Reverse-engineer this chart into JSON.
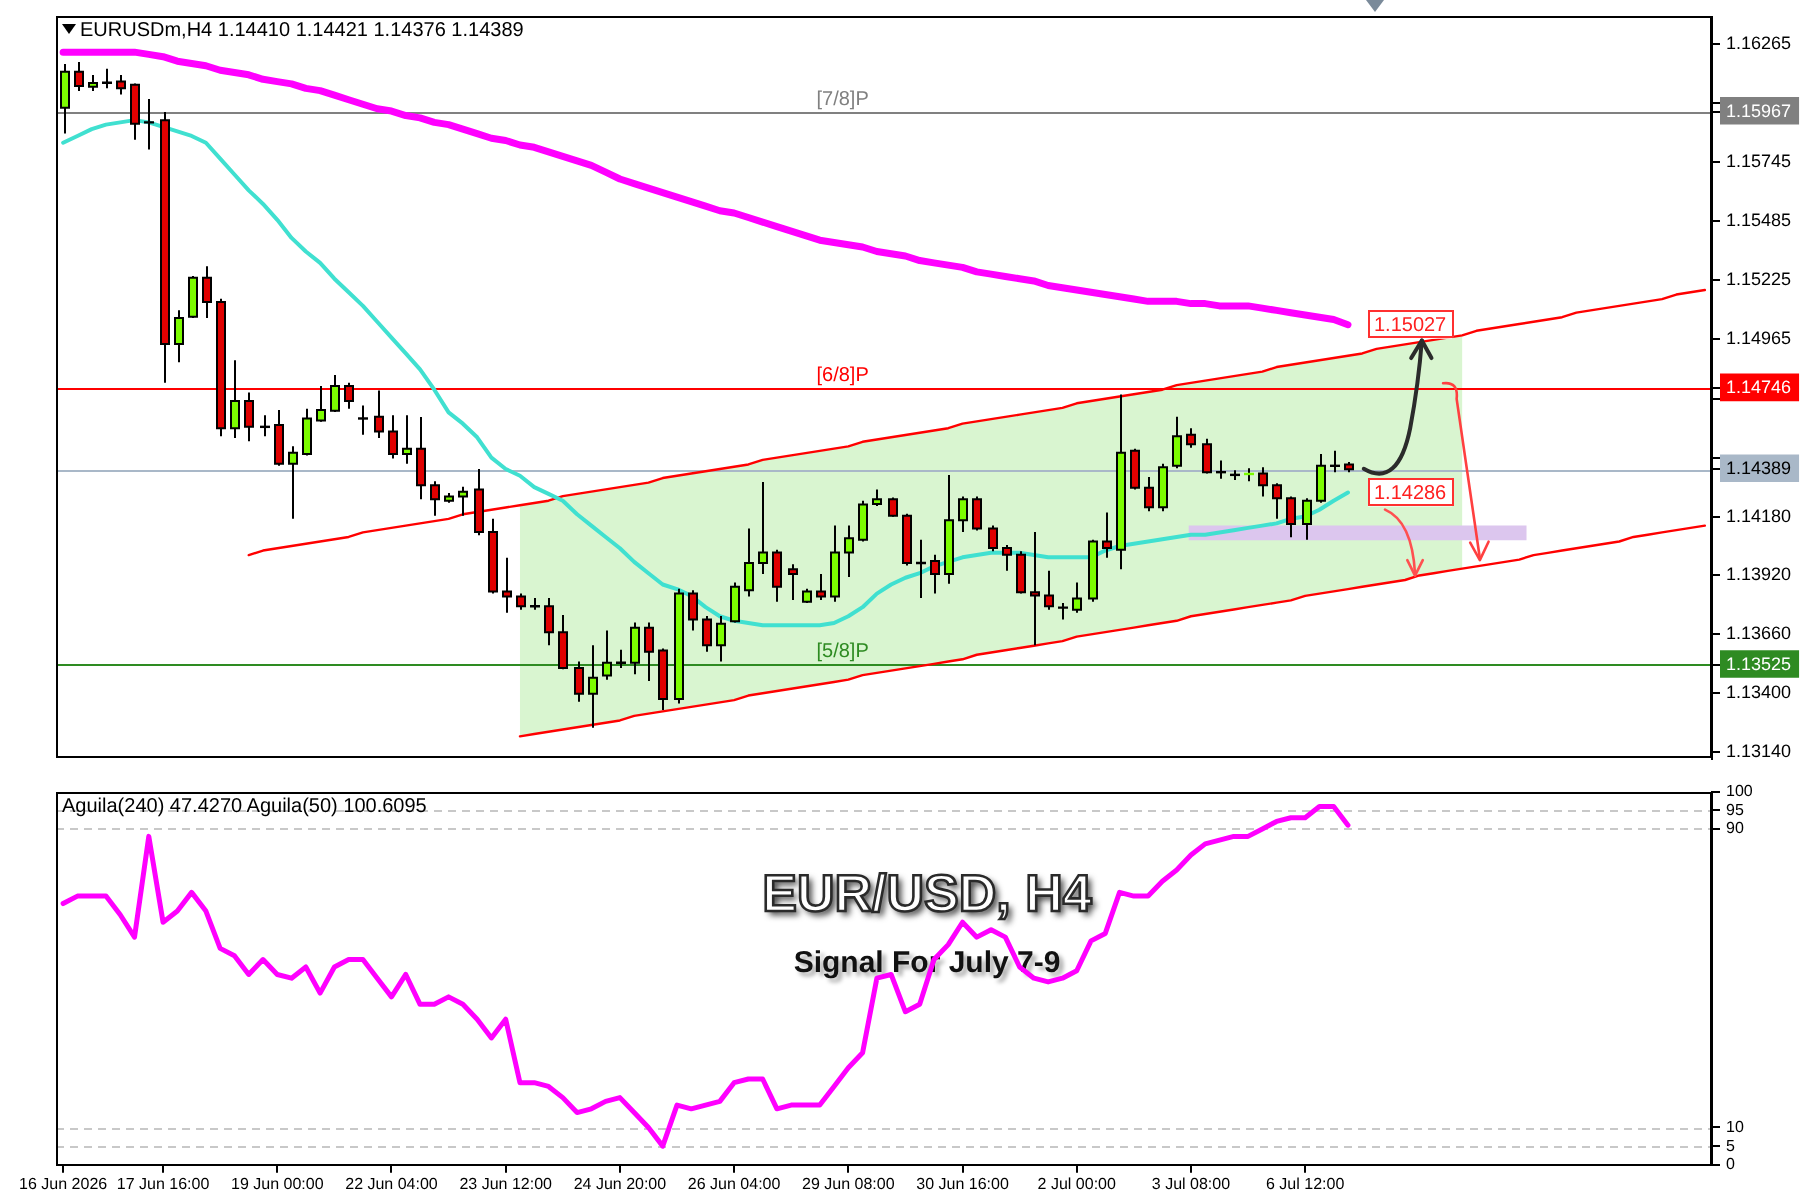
{
  "chart_data": [
    {
      "type": "candlestick",
      "title": "EURUSDm,H4 1.14410 1.14421 1.14376 1.14389",
      "categories": [
        null,
        null,
        null,
        null,
        null,
        null,
        null,
        null,
        null,
        null,
        null,
        null,
        null,
        null,
        null,
        null,
        null,
        null,
        null,
        null,
        null,
        null,
        null,
        null,
        null,
        null,
        null,
        null,
        null,
        null,
        null,
        null,
        null,
        null,
        null,
        null,
        null,
        null,
        null,
        null,
        null,
        null,
        null,
        null,
        null,
        null,
        null,
        null,
        null,
        null,
        null,
        null,
        null,
        null,
        null,
        null,
        null,
        null,
        null,
        null,
        null,
        null,
        null,
        null,
        null,
        null,
        null,
        null,
        null,
        null,
        null,
        null,
        null,
        null,
        null,
        null,
        null,
        null,
        null,
        null,
        null,
        null,
        null,
        null,
        null,
        null,
        null,
        null,
        null,
        null,
        null,
        null,
        null,
        null,
        null,
        null,
        null,
        null,
        null,
        null,
        null,
        null,
        null,
        null,
        null,
        null,
        null,
        null,
        null,
        null,
        null,
        null,
        null,
        null,
        null,
        null
      ],
      "ohlc": [
        [
          1.15985,
          1.16178,
          1.15871,
          1.16143
        ],
        [
          1.16143,
          1.16186,
          1.16058,
          1.1608
        ],
        [
          1.16077,
          1.16129,
          1.16058,
          1.16094
        ],
        [
          1.16095,
          1.16157,
          1.16071,
          1.16095
        ],
        [
          1.161,
          1.16129,
          1.16043,
          1.16071
        ],
        [
          1.16086,
          1.16092,
          1.15843,
          1.15914
        ],
        [
          1.1592,
          1.16023,
          1.158,
          1.1592
        ],
        [
          1.15929,
          1.15966,
          1.14771,
          1.14942
        ],
        [
          1.14942,
          1.15091,
          1.14861,
          1.15056
        ],
        [
          1.15062,
          1.15242,
          1.15056,
          1.15234
        ],
        [
          1.15234,
          1.15285,
          1.15056,
          1.15127
        ],
        [
          1.15127,
          1.15142,
          1.14535,
          1.1457
        ],
        [
          1.1457,
          1.1487,
          1.14527,
          1.1469
        ],
        [
          1.1469,
          1.14728,
          1.14513,
          1.14576
        ],
        [
          1.14576,
          1.14627,
          1.14535,
          1.14576
        ],
        [
          1.14584,
          1.1465,
          1.14404,
          1.14413
        ],
        [
          1.14413,
          1.1449,
          1.1417,
          1.14462
        ],
        [
          1.14456,
          1.14656,
          1.1445,
          1.14613
        ],
        [
          1.14604,
          1.14756,
          1.14599,
          1.1465
        ],
        [
          1.14647,
          1.14805,
          1.14642,
          1.14756
        ],
        [
          1.14756,
          1.14771,
          1.14656,
          1.1469
        ],
        [
          1.14613,
          1.1467,
          1.14541,
          1.14613
        ],
        [
          1.14621,
          1.14736,
          1.14527,
          1.14556
        ],
        [
          1.14556,
          1.14627,
          1.14436,
          1.14456
        ],
        [
          1.14456,
          1.14627,
          1.14413,
          1.14479
        ],
        [
          1.14479,
          1.14619,
          1.14256,
          1.14318
        ],
        [
          1.14318,
          1.14336,
          1.14184,
          1.14256
        ],
        [
          1.1425,
          1.14284,
          1.14241,
          1.14269
        ],
        [
          1.14269,
          1.14312,
          1.14184,
          1.1429
        ],
        [
          1.14299,
          1.1439,
          1.14098,
          1.14112
        ],
        [
          1.14112,
          1.1417,
          1.1384,
          1.13849
        ],
        [
          1.13849,
          1.13998,
          1.13755,
          1.13827
        ],
        [
          1.13827,
          1.1384,
          1.13769,
          1.13784
        ],
        [
          1.13784,
          1.13821,
          1.13769,
          1.13784
        ],
        [
          1.13784,
          1.13821,
          1.13612,
          1.13669
        ],
        [
          1.13669,
          1.13746,
          1.13506,
          1.13512
        ],
        [
          1.13512,
          1.1354,
          1.13363,
          1.13398
        ],
        [
          1.13398,
          1.13612,
          1.13248,
          1.13469
        ],
        [
          1.13478,
          1.13677,
          1.1346,
          1.13535
        ],
        [
          1.13535,
          1.13592,
          1.13512,
          1.13535
        ],
        [
          1.13535,
          1.13712,
          1.13484,
          1.13689
        ],
        [
          1.13689,
          1.13712,
          1.13454,
          1.13583
        ],
        [
          1.13589,
          1.13598,
          1.13326,
          1.13375
        ],
        [
          1.13375,
          1.13861,
          1.13355,
          1.1384
        ],
        [
          1.1384,
          1.13855,
          1.13677,
          1.13726
        ],
        [
          1.13726,
          1.13741,
          1.13583,
          1.13612
        ],
        [
          1.13612,
          1.13741,
          1.1354,
          1.13707
        ],
        [
          1.13718,
          1.13889,
          1.13712,
          1.1387
        ],
        [
          1.13855,
          1.14127,
          1.13827,
          1.13975
        ],
        [
          1.13975,
          1.14333,
          1.13926,
          1.14021
        ],
        [
          1.14021,
          1.14033,
          1.13804,
          1.1387
        ],
        [
          1.13947,
          1.13969,
          1.13812,
          1.13926
        ],
        [
          1.13804,
          1.13861,
          1.13798,
          1.13849
        ],
        [
          1.13849,
          1.13926,
          1.13812,
          1.13827
        ],
        [
          1.13827,
          1.14141,
          1.13804,
          1.14021
        ],
        [
          1.14021,
          1.14141,
          1.13913,
          1.14084
        ],
        [
          1.14078,
          1.1425,
          1.1407,
          1.14233
        ],
        [
          1.14235,
          1.14299,
          1.14227,
          1.14256
        ],
        [
          1.14256,
          1.14264,
          1.14179,
          1.14184
        ],
        [
          1.14184,
          1.14192,
          1.13964,
          1.13975
        ],
        [
          1.13975,
          1.14078,
          1.13821,
          1.13975
        ],
        [
          1.13984,
          1.14012,
          1.1384,
          1.13926
        ],
        [
          1.13926,
          1.14364,
          1.13883,
          1.14164
        ],
        [
          1.14164,
          1.14269,
          1.14112,
          1.14256
        ],
        [
          1.14256,
          1.14269,
          1.14118,
          1.14127
        ],
        [
          1.14127,
          1.14141,
          1.14027,
          1.14041
        ],
        [
          1.14041,
          1.14055,
          1.13941,
          1.14012
        ],
        [
          1.14012,
          1.14027,
          1.1384,
          1.13846
        ],
        [
          1.13846,
          1.14112,
          1.13612,
          1.13832
        ],
        [
          1.13832,
          1.13941,
          1.13769,
          1.13784
        ],
        [
          1.13778,
          1.13798,
          1.13726,
          1.13778
        ],
        [
          1.13769,
          1.13889,
          1.13755,
          1.13818
        ],
        [
          1.13818,
          1.14078,
          1.13804,
          1.1407
        ],
        [
          1.1407,
          1.14198,
          1.13998,
          1.14041
        ],
        [
          1.14033,
          1.14719,
          1.13947,
          1.14462
        ],
        [
          1.1447,
          1.14479,
          1.14299,
          1.14307
        ],
        [
          1.14307,
          1.14355,
          1.14204,
          1.14221
        ],
        [
          1.14221,
          1.14413,
          1.14204,
          1.14398
        ],
        [
          1.14404,
          1.14621,
          1.14393,
          1.14535
        ],
        [
          1.14541,
          1.1457,
          1.14484,
          1.14499
        ],
        [
          1.14499,
          1.14524,
          1.1437,
          1.14376
        ],
        [
          1.14376,
          1.14427,
          1.14347,
          1.14376
        ],
        [
          1.14364,
          1.14384,
          1.14341,
          1.14364
        ],
        [
          1.14364,
          1.14393,
          1.14336,
          1.14372
        ],
        [
          1.1437,
          1.14398,
          1.14269,
          1.14318
        ],
        [
          1.14318,
          1.14327,
          1.1417,
          1.14261
        ],
        [
          1.14261,
          1.14269,
          1.14089,
          1.14147
        ],
        [
          1.14147,
          1.14261,
          1.14078,
          1.1425
        ],
        [
          1.1425,
          1.14456,
          1.14241,
          1.14404
        ],
        [
          1.14404,
          1.1447,
          1.14376,
          1.14404
        ],
        [
          1.1441,
          1.14421,
          1.14376,
          1.14389
        ],
        null,
        null,
        null,
        null,
        null,
        null,
        null,
        null,
        null,
        null,
        null,
        null,
        null,
        null,
        null,
        null,
        null,
        null,
        null,
        null,
        null,
        null,
        null,
        null,
        null
      ],
      "colors": [
        "#7cfc00",
        "#e00000",
        "#7cfc00",
        "#000000",
        "#e00000",
        "#e00000",
        "#000000",
        "#e00000",
        "#7cfc00",
        "#7cfc00",
        "#e00000",
        "#e00000",
        "#7cfc00",
        "#e00000",
        "#000000",
        "#e00000",
        "#7cfc00",
        "#7cfc00",
        "#7cfc00",
        "#7cfc00",
        "#e00000",
        "#000000",
        "#e00000",
        "#e00000",
        "#7cfc00",
        "#e00000",
        "#e00000",
        "#7cfc00",
        "#7cfc00",
        "#e00000",
        "#e00000",
        "#e00000",
        "#e00000",
        "#000000",
        "#e00000",
        "#e00000",
        "#e00000",
        "#7cfc00",
        "#7cfc00",
        "#000000",
        "#7cfc00",
        "#e00000",
        "#e00000",
        "#7cfc00",
        "#e00000",
        "#e00000",
        "#7cfc00",
        "#7cfc00",
        "#7cfc00",
        "#7cfc00",
        "#e00000",
        "#e00000",
        "#7cfc00",
        "#e00000",
        "#7cfc00",
        "#7cfc00",
        "#7cfc00",
        "#7cfc00",
        "#e00000",
        "#e00000",
        "#000000",
        "#e00000",
        "#7cfc00",
        "#7cfc00",
        "#e00000",
        "#e00000",
        "#e00000",
        "#e00000",
        "#e00000",
        "#e00000",
        "#000000",
        "#7cfc00",
        "#7cfc00",
        "#e00000",
        "#7cfc00",
        "#e00000",
        "#e00000",
        "#7cfc00",
        "#7cfc00",
        "#e00000",
        "#e00000",
        "#000000",
        "#000000",
        "#7cfc00",
        "#e00000",
        "#e00000",
        "#e00000",
        "#7cfc00",
        "#7cfc00",
        "#000000",
        "#e00000",
        null,
        null,
        null,
        null,
        null,
        null,
        null,
        null,
        null,
        null,
        null,
        null,
        null,
        null,
        null,
        null,
        null,
        null,
        null,
        null,
        null,
        null,
        null,
        null,
        null
      ],
      "series": [
        {
          "type": "line",
          "color": "#40e0d0",
          "values": [
            1.1583,
            1.1586,
            1.1589,
            1.1591,
            1.1592,
            1.1593,
            1.1592,
            1.159,
            1.1588,
            1.1586,
            1.1583,
            1.1576,
            1.1569,
            1.1562,
            1.1556,
            1.1549,
            1.1541,
            1.1535,
            1.153,
            1.1523,
            1.1517,
            1.1511,
            1.1504,
            1.1497,
            1.149,
            1.1483,
            1.1474,
            1.1464,
            1.1459,
            1.1453,
            1.1444,
            1.1439,
            1.1436,
            1.1431,
            1.1428,
            1.1425,
            1.1419,
            1.1414,
            1.1409,
            1.1404,
            1.1398,
            1.1393,
            1.1388,
            1.1386,
            1.1383,
            1.1378,
            1.1374,
            1.1372,
            1.1371,
            1.137,
            1.137,
            1.137,
            1.137,
            1.137,
            1.1371,
            1.1374,
            1.1378,
            1.1384,
            1.1388,
            1.1391,
            1.1393,
            1.1396,
            1.1398,
            1.14,
            1.1401,
            1.1402,
            1.1402,
            1.1402,
            1.1401,
            1.14,
            1.14,
            1.14,
            1.14,
            1.1403,
            1.1405,
            1.1406,
            1.1407,
            1.1408,
            1.1409,
            1.141,
            1.141,
            1.1411,
            1.1412,
            1.1413,
            1.1414,
            1.1415,
            1.1417,
            1.1418,
            1.1421,
            1.1425,
            1.14286,
            null,
            null,
            null,
            null,
            null,
            null,
            null,
            null,
            null,
            null,
            null,
            null,
            null,
            null,
            null,
            null,
            null,
            null,
            null,
            null,
            null,
            null,
            null,
            null,
            null
          ]
        },
        {
          "type": "line",
          "color": "#ff00ff",
          "values": [
            1.1623,
            1.1623,
            1.1623,
            1.1623,
            1.1623,
            1.1623,
            1.1622,
            1.1621,
            1.1619,
            1.1618,
            1.1617,
            1.1615,
            1.1614,
            1.1613,
            1.1611,
            1.161,
            1.1609,
            1.1607,
            1.1606,
            1.1604,
            1.1602,
            1.16,
            1.1598,
            1.1597,
            1.1595,
            1.1594,
            1.1592,
            1.1591,
            1.1589,
            1.1587,
            1.1585,
            1.1584,
            1.1582,
            1.1581,
            1.1579,
            1.1577,
            1.1575,
            1.1573,
            1.157,
            1.1567,
            1.1565,
            1.1563,
            1.1561,
            1.1559,
            1.1557,
            1.1555,
            1.1553,
            1.1552,
            1.155,
            1.1548,
            1.1546,
            1.1544,
            1.1542,
            1.154,
            1.1539,
            1.1538,
            1.1537,
            1.1535,
            1.1534,
            1.1533,
            1.1531,
            1.153,
            1.1529,
            1.1528,
            1.1526,
            1.1525,
            1.1524,
            1.1523,
            1.1522,
            1.152,
            1.1519,
            1.1518,
            1.1517,
            1.1516,
            1.1515,
            1.1514,
            1.1513,
            1.1513,
            1.1513,
            1.1512,
            1.1512,
            1.1511,
            1.1511,
            1.1511,
            1.151,
            1.1509,
            1.1508,
            1.1507,
            1.1506,
            1.1505,
            1.15027,
            null,
            null,
            null,
            null,
            null,
            null,
            null,
            null,
            null,
            null,
            null,
            null,
            null,
            null,
            null,
            null,
            null,
            null,
            null,
            null,
            null,
            null,
            null,
            null,
            null
          ]
        },
        {
          "type": "line",
          "color": "#ff0000",
          "values": [
            null,
            null,
            null,
            null,
            null,
            null,
            null,
            null,
            null,
            null,
            null,
            null,
            null,
            1.1401,
            1.1403,
            1.1404,
            1.1405,
            1.1406,
            1.1407,
            1.1408,
            1.1409,
            1.1411,
            1.1412,
            1.1413,
            1.1414,
            1.1415,
            1.1416,
            1.1417,
            1.1419,
            1.142,
            1.1421,
            1.1422,
            1.1423,
            1.1424,
            1.1425,
            1.1427,
            1.1428,
            1.1429,
            1.143,
            1.1431,
            1.1432,
            1.1433,
            1.1435,
            1.1436,
            1.1437,
            1.1438,
            1.1439,
            1.144,
            1.1441,
            1.1443,
            1.1444,
            1.1445,
            1.1446,
            1.1447,
            1.1448,
            1.1449,
            1.1451,
            1.1452,
            1.1453,
            1.1454,
            1.1455,
            1.1456,
            1.1457,
            1.1459,
            1.146,
            1.1461,
            1.1462,
            1.1463,
            1.1464,
            1.1465,
            1.1466,
            1.1468,
            1.1469,
            1.147,
            1.1471,
            1.1472,
            1.1473,
            1.1474,
            1.1476,
            1.1477,
            1.1478,
            1.1479,
            1.148,
            1.1481,
            1.1482,
            1.1484,
            1.1485,
            1.1486,
            1.1487,
            1.1488,
            1.1489,
            1.149,
            1.1492,
            1.1493,
            1.1494,
            1.1495,
            1.1496,
            1.1497,
            1.1498,
            1.15,
            1.1501,
            1.1502,
            1.1503,
            1.1504,
            1.1505,
            1.1506,
            1.1508,
            1.1509,
            1.151,
            1.1511,
            1.1512,
            1.1513,
            1.1514,
            1.1516,
            1.1517,
            1.1518
          ],
          "upper": [
            null,
            null,
            null,
            null,
            null,
            null,
            null,
            null,
            null,
            null,
            null,
            null,
            null,
            null,
            null,
            null,
            null,
            null,
            null,
            null,
            null,
            null,
            null,
            null,
            null,
            null,
            null,
            null,
            null,
            null,
            null,
            null,
            1.1423,
            1.1424,
            1.1425,
            1.1427,
            1.1428,
            1.1429,
            1.143,
            1.1431,
            1.1432,
            1.1433,
            1.1435,
            1.1436,
            1.1437,
            1.1438,
            1.1439,
            1.144,
            1.1441,
            1.1443,
            1.1444,
            1.1445,
            1.1446,
            1.1447,
            1.1448,
            1.1449,
            1.1451,
            1.1452,
            1.1453,
            1.1454,
            1.1455,
            1.1456,
            1.1457,
            1.1459,
            1.146,
            1.1461,
            1.1462,
            1.1463,
            1.1464,
            1.1465,
            1.1466,
            1.1468,
            1.1469,
            1.147,
            1.1471,
            1.1472,
            1.1473,
            1.1474,
            1.1476,
            1.1477,
            1.1478,
            1.1479,
            1.148,
            1.1481,
            1.1482,
            1.1484,
            1.1485,
            1.1486,
            1.1487,
            1.1488,
            1.1489,
            1.149,
            1.1492,
            1.1493,
            1.1494,
            1.1495,
            1.1496,
            1.1497,
            1.1498,
            null,
            null,
            null,
            null,
            null,
            null,
            null,
            null,
            null,
            null,
            null,
            null,
            null,
            null,
            null,
            null,
            null
          ],
          "lower": [
            null,
            null,
            null,
            null,
            null,
            null,
            null,
            null,
            null,
            null,
            null,
            null,
            null,
            null,
            null,
            null,
            null,
            null,
            null,
            null,
            null,
            null,
            null,
            null,
            null,
            null,
            null,
            null,
            null,
            null,
            null,
            null,
            1.1321,
            1.1322,
            1.1323,
            1.1324,
            1.1325,
            1.1326,
            1.1327,
            1.1328,
            1.133,
            1.1331,
            1.1332,
            1.1333,
            1.1334,
            1.1335,
            1.1336,
            1.1337,
            1.1339,
            1.134,
            1.1341,
            1.1342,
            1.1343,
            1.1344,
            1.1345,
            1.1346,
            1.1348,
            1.1349,
            1.135,
            1.1351,
            1.1352,
            1.1353,
            1.1354,
            1.1355,
            1.1357,
            1.1358,
            1.1359,
            1.136,
            1.1361,
            1.1362,
            1.1363,
            1.1365,
            1.1366,
            1.1367,
            1.1368,
            1.1369,
            1.137,
            1.1371,
            1.1372,
            1.1374,
            1.1375,
            1.1376,
            1.1377,
            1.1378,
            1.1379,
            1.138,
            1.1381,
            1.1383,
            1.1384,
            1.1385,
            1.1386,
            1.1387,
            1.1388,
            1.1389,
            1.139,
            1.1392,
            1.1393,
            1.1394,
            1.1395,
            null,
            null,
            null,
            null,
            null,
            null,
            null,
            null,
            null,
            null,
            null,
            null,
            null,
            null,
            null,
            null,
            null
          ]
        },
        {
          "type": "line",
          "color": "#ff0000",
          "values": [
            null,
            null,
            null,
            null,
            null,
            null,
            null,
            null,
            null,
            null,
            null,
            null,
            null,
            null,
            null,
            null,
            null,
            null,
            null,
            null,
            null,
            null,
            null,
            null,
            null,
            null,
            null,
            null,
            null,
            null,
            null,
            null,
            1.1321,
            1.1322,
            1.1323,
            1.1324,
            1.1325,
            1.1326,
            1.1327,
            1.1328,
            1.133,
            1.1331,
            1.1332,
            1.1333,
            1.1334,
            1.1335,
            1.1336,
            1.1337,
            1.1339,
            1.134,
            1.1341,
            1.1342,
            1.1343,
            1.1344,
            1.1345,
            1.1346,
            1.1348,
            1.1349,
            1.135,
            1.1351,
            1.1352,
            1.1353,
            1.1354,
            1.1355,
            1.1357,
            1.1358,
            1.1359,
            1.136,
            1.1361,
            1.1362,
            1.1363,
            1.1365,
            1.1366,
            1.1367,
            1.1368,
            1.1369,
            1.137,
            1.1371,
            1.1372,
            1.1374,
            1.1375,
            1.1376,
            1.1377,
            1.1378,
            1.1379,
            1.138,
            1.1381,
            1.1383,
            1.1384,
            1.1385,
            1.1386,
            1.1387,
            1.1388,
            1.1389,
            1.139,
            1.1392,
            1.1393,
            1.1394,
            1.1395,
            1.1396,
            1.1397,
            1.1398,
            1.1399,
            1.1401,
            1.1402,
            1.1403,
            1.1404,
            1.1405,
            1.1406,
            1.1407,
            1.1409,
            1.141,
            1.1411,
            1.1412,
            1.1413,
            1.1414
          ]
        }
      ],
      "ylim": [
        1.13109,
        1.16386
      ],
      "yticks": [
        {
          "value": 1.1314,
          "label": "1.13140"
        },
        {
          "value": 1.134,
          "label": "1.13400"
        },
        1.13525,
        {
          "value": 1.1366,
          "label": "1.13660"
        },
        {
          "value": 1.1392,
          "label": "1.13920"
        },
        {
          "value": 1.1418,
          "label": "1.14180"
        },
        1.14389,
        {
          "value": 1.1444,
          "label": null
        },
        {
          "value": 1.147,
          "label": null
        },
        1.14746,
        1.14965,
        1.15225,
        1.15485,
        1.15745,
        1.15967,
        {
          "value": 1.16005,
          "label": null
        },
        1.16265
      ],
      "ref_lines": [
        {
          "axis": "y",
          "value": 1.15967,
          "label": "[7/8]P",
          "color": "#808080"
        },
        {
          "axis": "y",
          "value": 1.14746,
          "label": "[6/8]P",
          "color": "#ff0000"
        },
        {
          "axis": "y",
          "value": 1.14389,
          "color": "#a9b8c8"
        },
        {
          "axis": "y",
          "value": 1.13525,
          "label": "[5/8]P",
          "color": "#2e8b22"
        }
      ],
      "bands": [
        {
          "axis": "y",
          "from": 1.14075,
          "to": 1.14141,
          "color": "#dcc6ee"
        }
      ],
      "annotations": [
        {
          "text": "1.15027",
          "y": 1.15027
        },
        {
          "text": "1.14286",
          "y": 1.14286
        }
      ],
      "tick_labels": "y",
      "marker": "none"
    },
    {
      "type": "line",
      "title": "Aguila(240) 47.4270 Aguila(50) 100.6095",
      "categories": [
        "16 Jun 2026",
        null,
        null,
        null,
        null,
        null,
        null,
        "17 Jun 16:00",
        null,
        null,
        null,
        null,
        null,
        null,
        null,
        "19 Jun 00:00",
        null,
        null,
        null,
        null,
        null,
        null,
        null,
        "22 Jun 04:00",
        null,
        null,
        null,
        null,
        null,
        null,
        null,
        "23 Jun 12:00",
        null,
        null,
        null,
        null,
        null,
        null,
        null,
        "24 Jun 20:00",
        null,
        null,
        null,
        null,
        null,
        null,
        null,
        "26 Jun 04:00",
        null,
        null,
        null,
        null,
        null,
        null,
        null,
        "29 Jun 08:00",
        null,
        null,
        null,
        null,
        null,
        null,
        null,
        "30 Jun 16:00",
        null,
        null,
        null,
        null,
        null,
        null,
        null,
        "2 Jul 00:00",
        null,
        null,
        null,
        null,
        null,
        null,
        null,
        "3 Jul 08:00",
        null,
        null,
        null,
        null,
        null,
        null,
        null,
        "6 Jul 12:00",
        null,
        null,
        null,
        null,
        null,
        null,
        null,
        null,
        null,
        null,
        null,
        null,
        null,
        null,
        null,
        null,
        null,
        null,
        null,
        null,
        null,
        null,
        null,
        null,
        null,
        null,
        null,
        null
      ],
      "values": [
        70,
        72,
        72,
        72,
        67,
        61,
        88,
        65,
        68,
        73,
        68,
        58,
        56,
        51,
        55,
        51,
        50,
        53,
        46,
        53,
        55,
        55,
        50,
        45,
        51,
        43,
        43,
        45,
        43,
        39,
        34,
        39,
        22,
        22,
        21,
        18,
        14,
        15,
        17,
        18,
        14,
        10,
        5,
        16,
        15,
        16,
        17,
        22,
        23,
        23,
        15,
        16,
        16,
        16,
        21,
        26,
        30,
        50,
        51,
        41,
        43,
        55,
        59,
        65,
        61,
        63,
        61,
        53,
        50,
        49,
        50,
        52,
        60,
        62,
        73,
        72,
        72,
        76,
        79,
        83,
        86,
        87,
        88,
        88,
        90,
        92,
        93,
        93,
        96,
        96,
        91,
        null,
        null,
        null,
        null,
        null,
        null,
        null,
        null,
        null,
        null,
        null,
        null,
        null,
        null,
        null,
        null,
        null,
        null,
        null,
        null,
        null,
        null,
        null,
        null,
        null
      ],
      "color": "#ff00ff",
      "ylim": [
        0,
        100
      ],
      "yticks": [
        0,
        5,
        10,
        90,
        95,
        100
      ],
      "ref_lines": [
        {
          "axis": "y",
          "value": 95,
          "color": "#c8c8c8",
          "line_style": "dashed"
        },
        {
          "axis": "y",
          "value": 90,
          "color": "#c8c8c8",
          "line_style": "dashed"
        },
        {
          "axis": "y",
          "value": 10,
          "color": "#c8c8c8",
          "line_style": "dashed"
        },
        {
          "axis": "y",
          "value": 5,
          "color": "#c8c8c8",
          "line_style": "dashed"
        }
      ],
      "annotations": [
        "EUR/USD, H4",
        "Signal For July 7-9"
      ],
      "marker": "none"
    }
  ]
}
